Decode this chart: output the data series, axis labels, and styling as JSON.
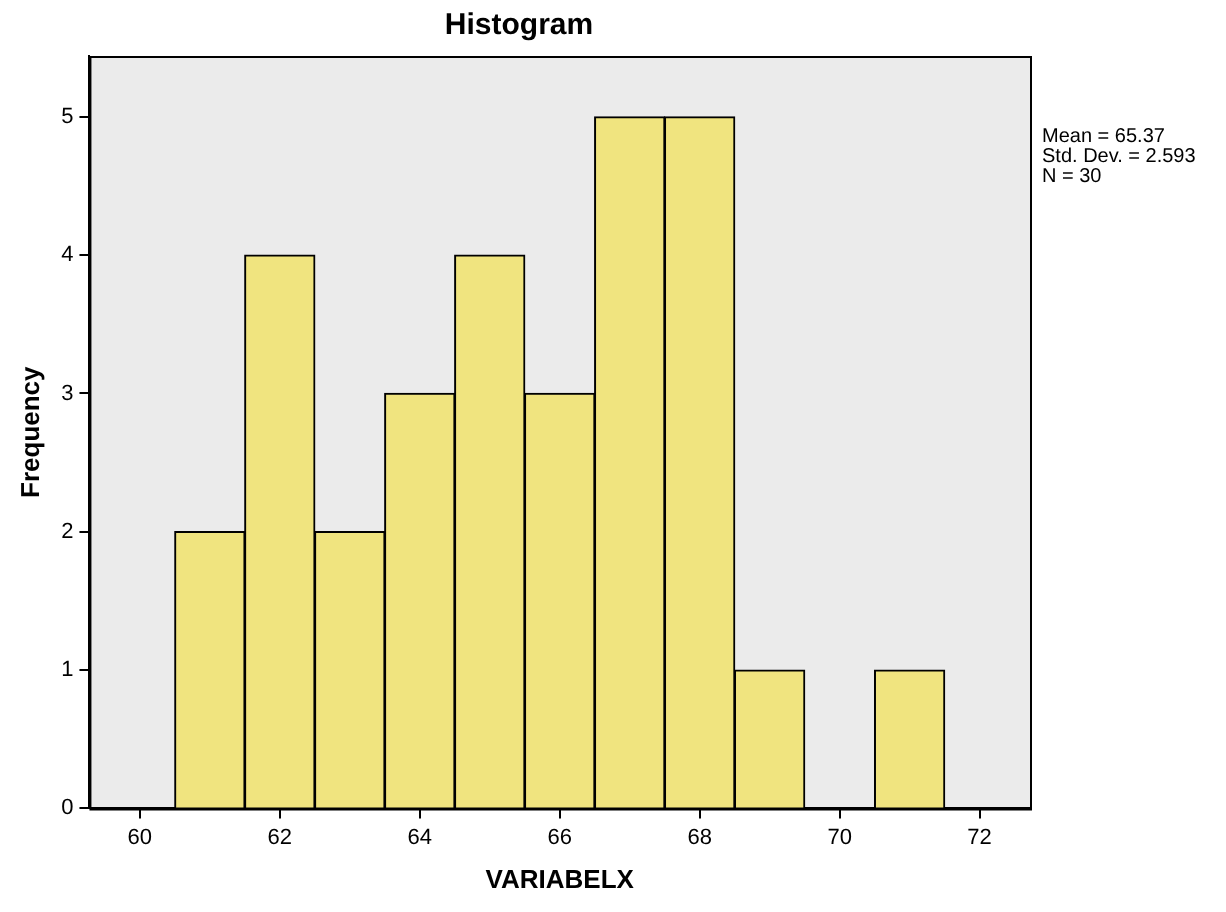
{
  "chart_data": {
    "type": "histogram",
    "title": "Histogram",
    "xlabel": "VARIABELX",
    "ylabel": "Frequency",
    "bins": [
      60.5,
      61.5,
      62.5,
      63.5,
      64.5,
      65.5,
      66.5,
      67.5,
      68.5,
      69.5,
      70.5,
      71.5
    ],
    "values": [
      2,
      4,
      2,
      3,
      4,
      3,
      5,
      5,
      1,
      0,
      1
    ],
    "color": "#f0e47f",
    "xlim": [
      59.28,
      72.72
    ],
    "xticks": [
      60,
      62,
      64,
      66,
      68,
      70,
      72
    ],
    "ylim": [
      0,
      5.44
    ],
    "yticks": [
      0,
      1,
      2,
      3,
      4,
      5
    ],
    "grid": false,
    "legend": false,
    "annotations": [
      "Mean = 65.37",
      "Std. Dev. = 2.593",
      "N = 30"
    ]
  }
}
